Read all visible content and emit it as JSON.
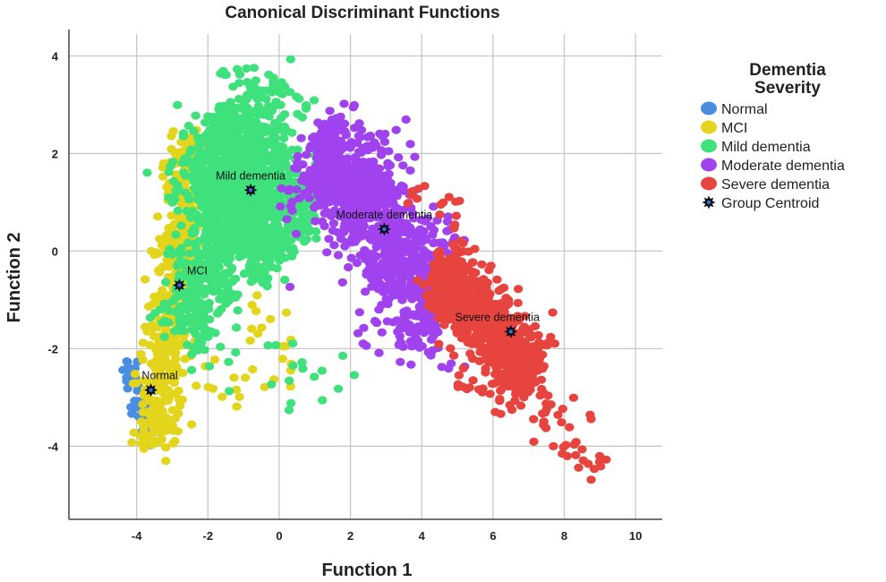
{
  "chart_data": {
    "type": "scatter",
    "title": "Canonical Discriminant Functions",
    "xlabel": "Function 1",
    "ylabel": "Function 2",
    "xlim": [
      -5.9,
      10.75
    ],
    "ylim": [
      -5.5,
      4.45
    ],
    "xticks": [
      -4,
      -2,
      0,
      2,
      4,
      6,
      8,
      10
    ],
    "yticks": [
      4,
      2,
      0,
      -2,
      -4
    ],
    "grid": true,
    "legend": {
      "title_lines": [
        "Dementia",
        "Severity"
      ],
      "placement": "right",
      "centroid_label": "Group Centroid"
    },
    "series": [
      {
        "name": "Normal",
        "color": "#4a8ee2",
        "clusters": [
          {
            "from": [
              -4.3,
              -2.2
            ],
            "to": [
              -3.5,
              -3.9
            ],
            "spread": 0.18,
            "n": 60
          }
        ]
      },
      {
        "name": "MCI",
        "color": "#e3d41c",
        "clusters": [
          {
            "from": [
              -3.5,
              -4.0
            ],
            "to": [
              -2.4,
              2.4
            ],
            "spread": 0.3,
            "n": 520
          },
          {
            "from": [
              -4.3,
              -3.2
            ],
            "to": [
              0.4,
              -1.9
            ],
            "spread": 0.6,
            "n": 40
          }
        ]
      },
      {
        "name": "Mild dementia",
        "color": "#3fe17c",
        "clusters": [
          {
            "from": [
              -1.8,
              2.6
            ],
            "to": [
              0.1,
              0.0
            ],
            "spread": 0.75,
            "n": 1100
          },
          {
            "from": [
              -2.7,
              -1.8
            ],
            "to": [
              -1.2,
              1.5
            ],
            "spread": 0.45,
            "n": 350
          },
          {
            "from": [
              -1.6,
              3.6
            ],
            "to": [
              1.0,
              3.0
            ],
            "spread": 0.2,
            "n": 40
          },
          {
            "from": [
              -2.5,
              -2.0
            ],
            "to": [
              2.0,
              -2.6
            ],
            "spread": 0.5,
            "n": 25
          }
        ]
      },
      {
        "name": "Moderate dementia",
        "color": "#a043ef",
        "clusters": [
          {
            "from": [
              1.0,
              2.3
            ],
            "to": [
              4.6,
              -1.3
            ],
            "spread": 0.55,
            "n": 1000
          },
          {
            "from": [
              0.2,
              1.0
            ],
            "to": [
              3.8,
              2.5
            ],
            "spread": 0.35,
            "n": 60
          },
          {
            "from": [
              2.0,
              -1.6
            ],
            "to": [
              5.5,
              -2.3
            ],
            "spread": 0.2,
            "n": 25
          }
        ]
      },
      {
        "name": "Severe dementia",
        "color": "#e8443f",
        "clusters": [
          {
            "from": [
              4.4,
              -0.3
            ],
            "to": [
              7.2,
              -2.6
            ],
            "spread": 0.35,
            "n": 800
          },
          {
            "from": [
              6.0,
              -2.4
            ],
            "to": [
              9.1,
              -4.4
            ],
            "spread": 0.35,
            "n": 55
          },
          {
            "from": [
              4.8,
              -2.4
            ],
            "to": [
              6.5,
              -3.1
            ],
            "spread": 0.25,
            "n": 20
          },
          {
            "from": [
              3.4,
              1.3
            ],
            "to": [
              5.2,
              0.9
            ],
            "spread": 0.2,
            "n": 15
          }
        ]
      }
    ],
    "centroids": [
      {
        "label": "Normal",
        "x": -3.6,
        "y": -2.85
      },
      {
        "label": "MCI",
        "x": -2.8,
        "y": -0.7
      },
      {
        "label": "Mild dementia",
        "x": -0.8,
        "y": 1.25
      },
      {
        "label": "Moderate dementia",
        "x": 2.95,
        "y": 0.45
      },
      {
        "label": "Severe dementia",
        "x": 6.5,
        "y": -1.65
      }
    ]
  }
}
